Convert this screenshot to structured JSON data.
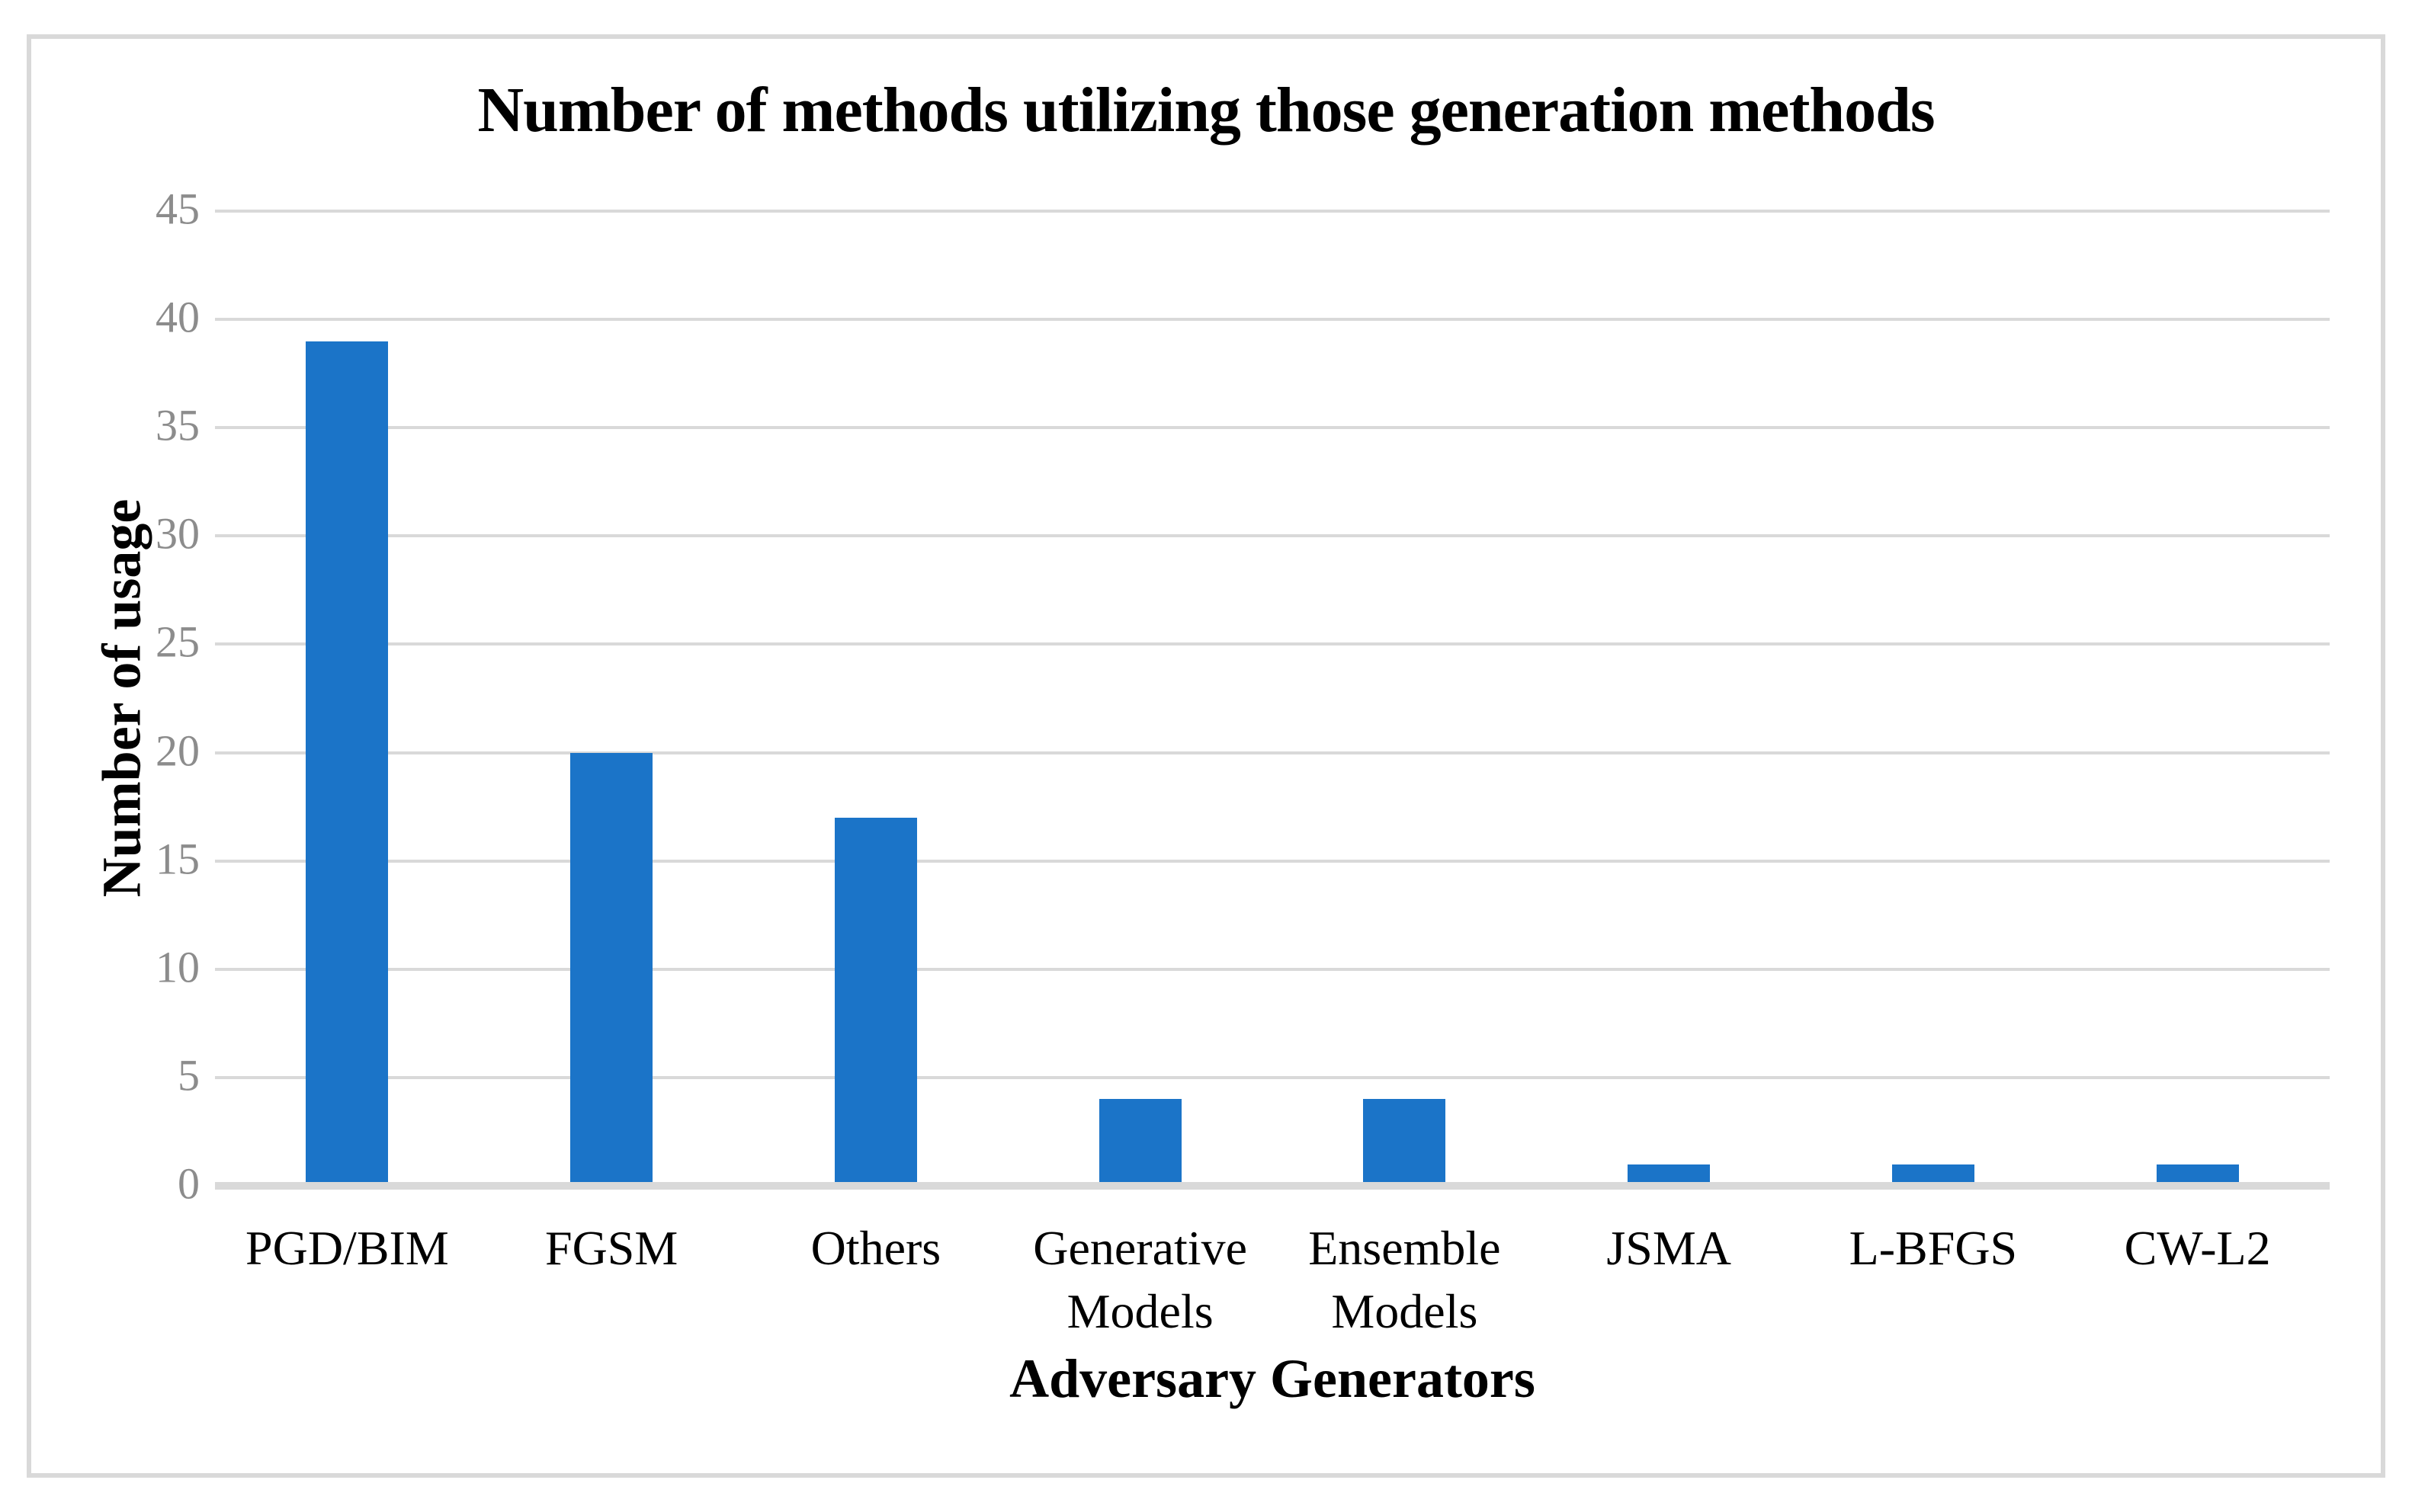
{
  "figure": {
    "background": "#FFFFFF",
    "border_color": "#D9D9D9"
  },
  "chart_data": {
    "type": "bar",
    "title": "Number of methods utilizing those generation methods",
    "xlabel": "Adversary Generators",
    "ylabel": "Number of usage",
    "categories": [
      "PGD/BIM",
      "FGSM",
      "Others",
      "Generative Models",
      "Ensemble Models",
      "JSMA",
      "L-BFGS",
      "CW-L2"
    ],
    "values": [
      39,
      20,
      17,
      4,
      4,
      1,
      1,
      1
    ],
    "ylim": [
      0,
      45
    ],
    "yticks": [
      0,
      5,
      10,
      15,
      20,
      25,
      30,
      35,
      40,
      45
    ],
    "grid": true,
    "legend": false,
    "gridlines_horizontal_only": true,
    "bar_color": "#1B74C8",
    "gridline_color": "#D9D9D9",
    "baseline_color": "#D9D9D9",
    "tick_label_color": "#8C8C8C",
    "text_color": "#000000"
  }
}
